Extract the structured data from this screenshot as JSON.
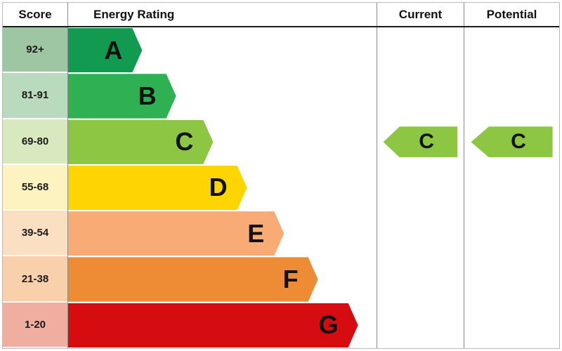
{
  "header": {
    "score_label": "Score",
    "rating_label": "Energy Rating",
    "current_label": "Current",
    "potential_label": "Potential"
  },
  "chart_data": {
    "type": "bar",
    "title": "Energy Rating",
    "description": "EPC energy efficiency rating chart with current and potential ratings",
    "bands": [
      {
        "letter": "A",
        "score_range": "92+",
        "bar_color": "#119a50",
        "score_bg": "#9fc6a3",
        "bar_width_pct": 24
      },
      {
        "letter": "B",
        "score_range": "81-91",
        "bar_color": "#2eb053",
        "score_bg": "#b9dabc",
        "bar_width_pct": 35
      },
      {
        "letter": "C",
        "score_range": "69-80",
        "bar_color": "#8dc642",
        "score_bg": "#d8e9c0",
        "bar_width_pct": 47
      },
      {
        "letter": "D",
        "score_range": "55-68",
        "bar_color": "#fed500",
        "score_bg": "#fdf3c0",
        "bar_width_pct": 58
      },
      {
        "letter": "E",
        "score_range": "39-54",
        "bar_color": "#f8ab75",
        "score_bg": "#fbdfc3",
        "bar_width_pct": 70
      },
      {
        "letter": "F",
        "score_range": "21-38",
        "bar_color": "#ee8b35",
        "score_bg": "#f8d0ab",
        "bar_width_pct": 81
      },
      {
        "letter": "G",
        "score_range": "1-20",
        "bar_color": "#d50c10",
        "score_bg": "#efae9f",
        "bar_width_pct": 94
      }
    ],
    "current": {
      "label": "C",
      "band_index": 2,
      "arrow_color": "#8dc642"
    },
    "potential": {
      "label": "C",
      "band_index": 2,
      "arrow_color": "#8dc642"
    }
  }
}
